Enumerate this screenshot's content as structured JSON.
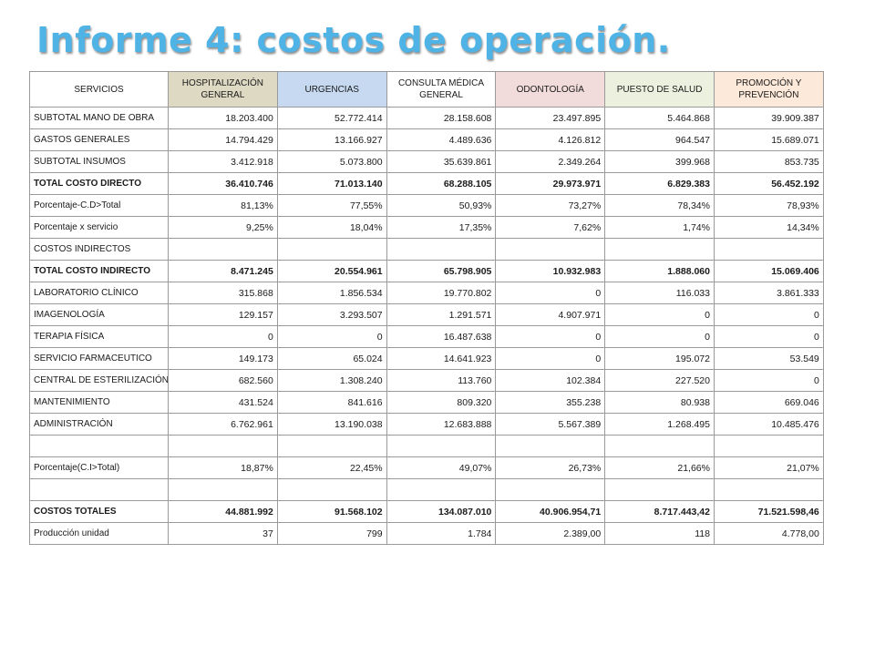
{
  "title": "Informe 4: costos de operación.",
  "colors": {
    "title": "#4fb3e6",
    "header_servicios": "#ffffff",
    "header_hospitalizacion": "#ddd9c3",
    "header_urgencias": "#c6d9f1",
    "header_consulta": "#ffffff",
    "header_odontologia": "#f2dcdb",
    "header_puesto": "#ebf1de",
    "header_promocion": "#fde9d9"
  },
  "headers": [
    "SERVICIOS",
    "HOSPITALIZACIÓN GENERAL",
    "URGENCIAS",
    "CONSULTA MÉDICA GENERAL",
    "ODONTOLOGÍA",
    "PUESTO DE SALUD",
    "PROMOCIÓN Y PREVENCIÓN"
  ],
  "rows": [
    [
      "SUBTOTAL MANO DE OBRA",
      "18.203.400",
      "52.772.414",
      "28.158.608",
      "23.497.895",
      "5.464.868",
      "39.909.387"
    ],
    [
      " GASTOS GENERALES",
      "14.794.429",
      "13.166.927",
      "4.489.636",
      "4.126.812",
      "964.547",
      "15.689.071"
    ],
    [
      "SUBTOTAL INSUMOS",
      "3.412.918",
      "5.073.800",
      "35.639.861",
      "2.349.264",
      "399.968",
      "853.735"
    ],
    [
      "TOTAL COSTO DIRECTO",
      "36.410.746",
      "71.013.140",
      "68.288.105",
      "29.973.971",
      "6.829.383",
      "56.452.192"
    ],
    [
      "Porcentaje-C.D>Total",
      "81,13%",
      "77,55%",
      "50,93%",
      "73,27%",
      "78,34%",
      "78,93%"
    ],
    [
      "Porcentaje x servicio",
      "9,25%",
      "18,04%",
      "17,35%",
      "7,62%",
      "1,74%",
      "14,34%"
    ],
    [
      "COSTOS INDIRECTOS",
      "",
      "",
      "",
      "",
      "",
      ""
    ],
    [
      "TOTAL COSTO INDIRECTO",
      "8.471.245",
      "20.554.961",
      "65.798.905",
      "10.932.983",
      "1.888.060",
      "15.069.406"
    ],
    [
      "LABORATORIO CLÍNICO",
      "315.868",
      "1.856.534",
      "19.770.802",
      "0",
      "116.033",
      "3.861.333"
    ],
    [
      "IMAGENOLOGÍA",
      "129.157",
      "3.293.507",
      "1.291.571",
      "4.907.971",
      "0",
      "0"
    ],
    [
      "TERAPIA FÍSICA",
      "0",
      "0",
      "16.487.638",
      "0",
      "0",
      "0"
    ],
    [
      "SERVICIO FARMACEUTICO",
      "149.173",
      "65.024",
      "14.641.923",
      "0",
      "195.072",
      "53.549"
    ],
    [
      "CENTRAL DE ESTERILIZACIÓN",
      "682.560",
      "1.308.240",
      "113.760",
      "102.384",
      "227.520",
      "0"
    ],
    [
      "MANTENIMIENTO",
      "431.524",
      "841.616",
      "809.320",
      "355.238",
      "80.938",
      "669.046"
    ],
    [
      "ADMINISTRACIÓN",
      "6.762.961",
      "13.190.038",
      "12.683.888",
      "5.567.389",
      "1.268.495",
      "10.485.476"
    ],
    [
      "",
      "",
      "",
      "",
      "",
      "",
      ""
    ],
    [
      "Porcentaje(C.I>Total)",
      "18,87%",
      "22,45%",
      "49,07%",
      "26,73%",
      "21,66%",
      "21,07%"
    ],
    [
      "",
      "",
      "",
      "",
      "",
      "",
      ""
    ],
    [
      "COSTOS TOTALES",
      "44.881.992",
      "91.568.102",
      "134.087.010",
      "40.906.954,71",
      "8.717.443,42",
      "71.521.598,46"
    ],
    [
      " Producción unidad",
      "37",
      "799",
      "1.784",
      "2.389,00",
      "118",
      "4.778,00"
    ]
  ],
  "bold_rows": [
    3,
    7,
    18
  ]
}
